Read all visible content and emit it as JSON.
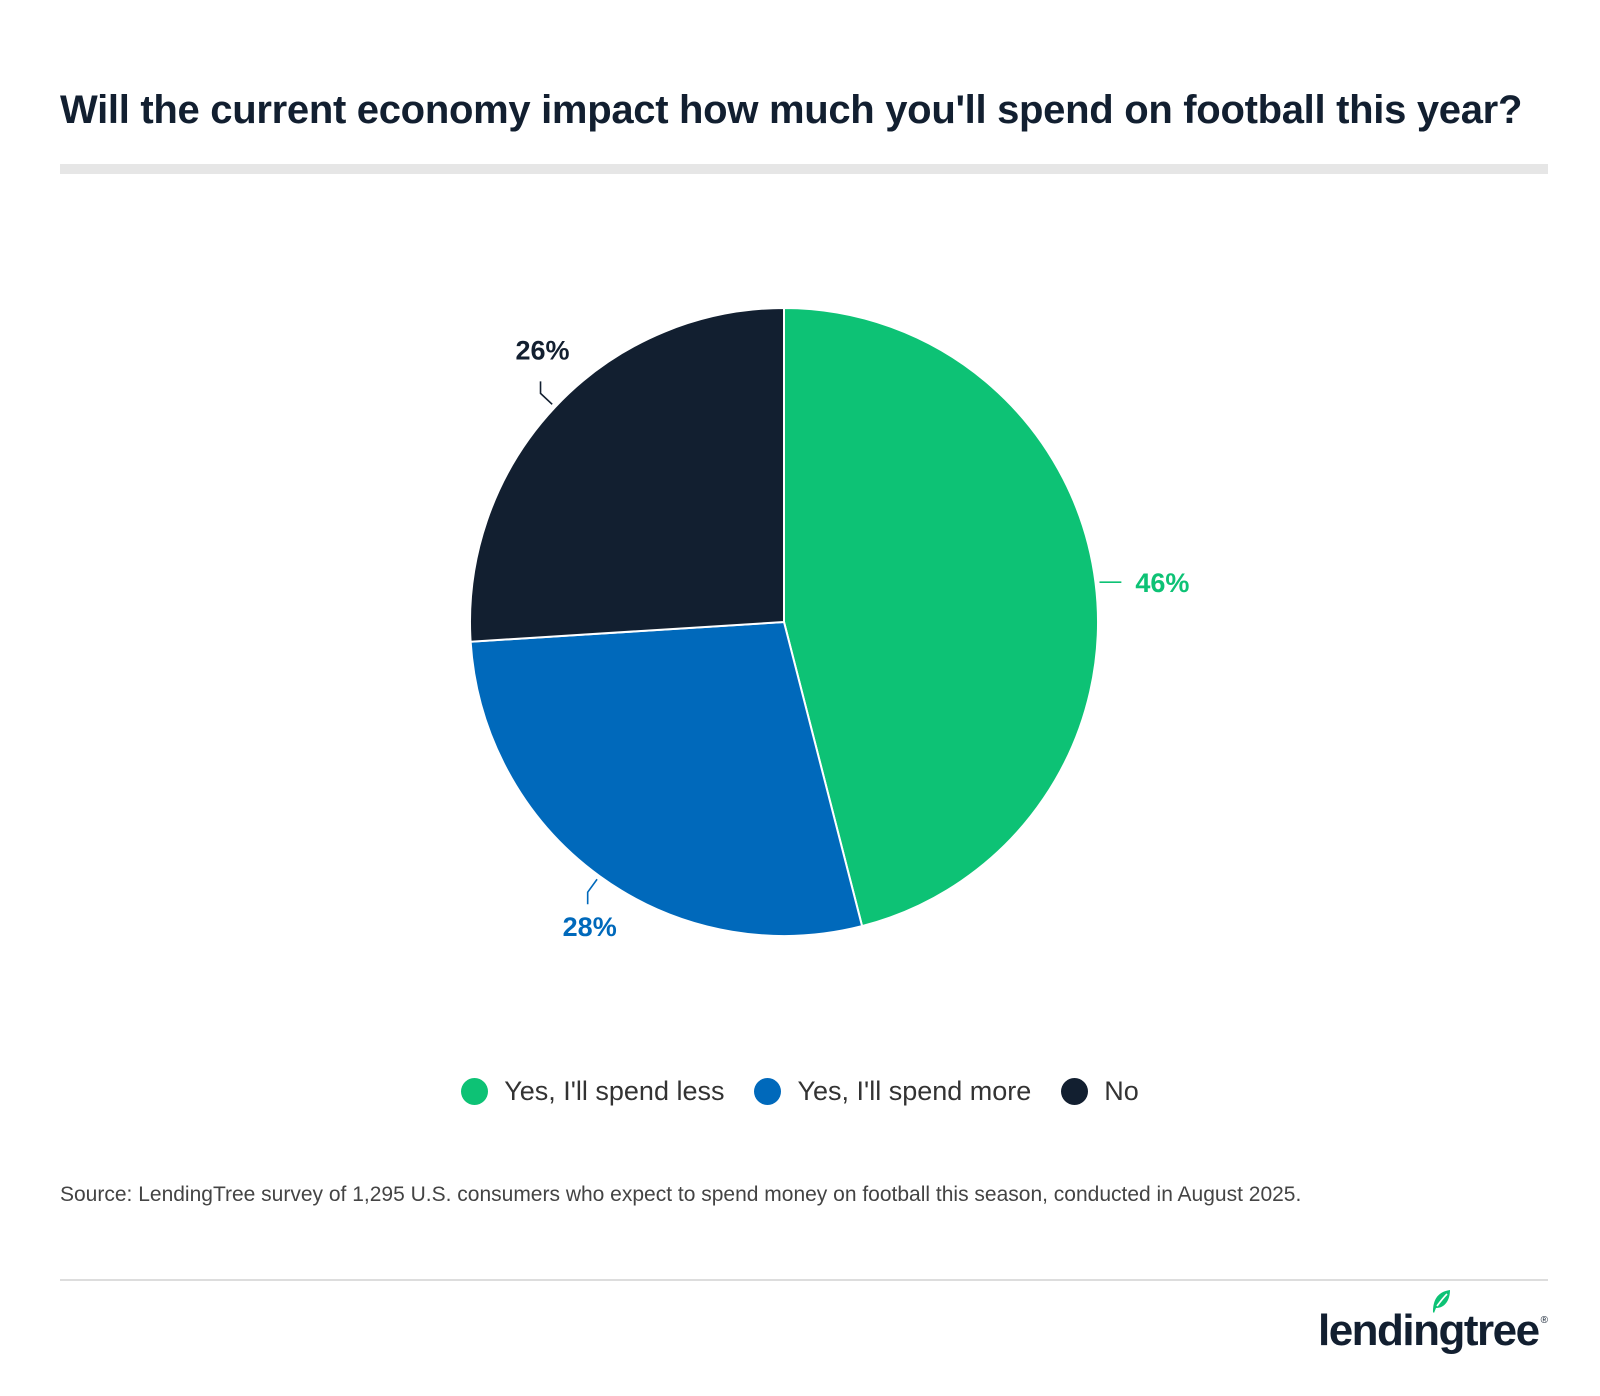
{
  "title": "Will the current economy impact how much you'll spend on football this year?",
  "chart_data": {
    "type": "pie",
    "slices": [
      {
        "label": "Yes, I'll spend less",
        "value": 46,
        "value_label": "46%",
        "color": "#0dc275"
      },
      {
        "label": "Yes, I'll spend more",
        "value": 28,
        "value_label": "28%",
        "color": "#0069bb"
      },
      {
        "label": "No",
        "value": 26,
        "value_label": "26%",
        "color": "#121f30"
      }
    ],
    "legend_position": "bottom"
  },
  "source": "Source: LendingTree survey of 1,295 U.S. consumers who expect to spend money on football this season, conducted in August 2025.",
  "logo": {
    "text": "lendingtree",
    "mark": "®",
    "leaf_color": "#0dc275"
  }
}
